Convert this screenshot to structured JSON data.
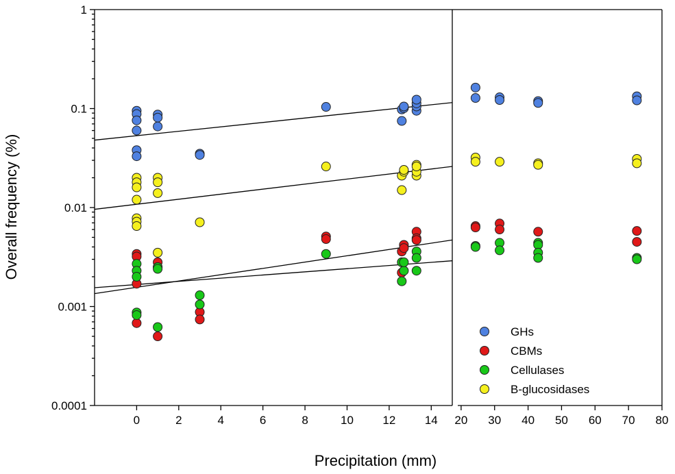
{
  "chart_data": {
    "type": "scatter",
    "title": "",
    "xlabel": "Precipitation (mm)",
    "ylabel": "Overall frequency (%)",
    "yscale": "log",
    "ylim": [
      0.0001,
      1
    ],
    "yticks": [
      {
        "value": 0.0001,
        "label": "0.0001"
      },
      {
        "value": 0.001,
        "label": "0.001"
      },
      {
        "value": 0.01,
        "label": "0.01"
      },
      {
        "value": 0.1,
        "label": "0.1"
      },
      {
        "value": 1,
        "label": "1"
      }
    ],
    "x_segments": [
      {
        "range": [
          -2,
          15
        ],
        "ticks": [
          {
            "value": 0,
            "label": "0"
          },
          {
            "value": 2,
            "label": "2"
          },
          {
            "value": 4,
            "label": "4"
          },
          {
            "value": 6,
            "label": "6"
          },
          {
            "value": 8,
            "label": "8"
          },
          {
            "value": 10,
            "label": "10"
          },
          {
            "value": 12,
            "label": "12"
          },
          {
            "value": 14,
            "label": "14"
          }
        ]
      },
      {
        "range": [
          19,
          80
        ],
        "ticks": [
          {
            "value": 20,
            "label": "20"
          },
          {
            "value": 30,
            "label": "30"
          },
          {
            "value": 40,
            "label": "40"
          },
          {
            "value": 50,
            "label": "50"
          },
          {
            "value": 60,
            "label": "60"
          },
          {
            "value": 70,
            "label": "70"
          },
          {
            "value": 80,
            "label": "80"
          }
        ]
      }
    ],
    "legend_position": "bottom-right",
    "series": [
      {
        "name": "GHs",
        "color": "#4f81e0",
        "points": [
          [
            0,
            0.095
          ],
          [
            0,
            0.088
          ],
          [
            0,
            0.076
          ],
          [
            0,
            0.06
          ],
          [
            0,
            0.038
          ],
          [
            0,
            0.033
          ],
          [
            1,
            0.087
          ],
          [
            1,
            0.081
          ],
          [
            1,
            0.066
          ],
          [
            3,
            0.035
          ],
          [
            3,
            0.034
          ],
          [
            9,
            0.104
          ],
          [
            12.6,
            0.075
          ],
          [
            12.6,
            0.098
          ],
          [
            12.7,
            0.101
          ],
          [
            12.7,
            0.105
          ],
          [
            13.3,
            0.095
          ],
          [
            13.3,
            0.105
          ],
          [
            13.3,
            0.113
          ],
          [
            13.3,
            0.123
          ],
          [
            24.3,
            0.163
          ],
          [
            24.3,
            0.128
          ],
          [
            31.5,
            0.13
          ],
          [
            31.5,
            0.122
          ],
          [
            43,
            0.119
          ],
          [
            43,
            0.114
          ],
          [
            72.5,
            0.133
          ],
          [
            72.5,
            0.121
          ]
        ],
        "trend": [
          [
            -2,
            0.048
          ],
          [
            15,
            0.115
          ]
        ]
      },
      {
        "name": "CBMs",
        "color": "#e01919",
        "points": [
          [
            0,
            0.0034
          ],
          [
            0,
            0.0032
          ],
          [
            0,
            0.0017
          ],
          [
            0,
            0.00068
          ],
          [
            1,
            0.0028
          ],
          [
            1,
            0.0025
          ],
          [
            1,
            0.0005
          ],
          [
            3,
            0.00088
          ],
          [
            3,
            0.00074
          ],
          [
            9,
            0.0051
          ],
          [
            9,
            0.0048
          ],
          [
            12.6,
            0.0036
          ],
          [
            12.7,
            0.0042
          ],
          [
            12.7,
            0.0039
          ],
          [
            12.6,
            0.0022
          ],
          [
            13.3,
            0.0057
          ],
          [
            13.3,
            0.0049
          ],
          [
            13.3,
            0.0047
          ],
          [
            24.3,
            0.0065
          ],
          [
            24.3,
            0.0063
          ],
          [
            31.5,
            0.0069
          ],
          [
            31.5,
            0.006
          ],
          [
            43,
            0.0057
          ],
          [
            72.5,
            0.0058
          ],
          [
            72.5,
            0.0045
          ]
        ],
        "trend": [
          [
            -2,
            0.00135
          ],
          [
            15,
            0.0047
          ]
        ]
      },
      {
        "name": "Cellulases",
        "color": "#19c819",
        "points": [
          [
            0,
            0.0027
          ],
          [
            0,
            0.0023
          ],
          [
            0,
            0.002
          ],
          [
            0,
            0.00087
          ],
          [
            0,
            0.00082
          ],
          [
            1,
            0.00062
          ],
          [
            1,
            0.0025
          ],
          [
            1,
            0.0024
          ],
          [
            3,
            0.0013
          ],
          [
            3,
            0.00105
          ],
          [
            9,
            0.0034
          ],
          [
            12.6,
            0.0028
          ],
          [
            12.6,
            0.0018
          ],
          [
            12.7,
            0.0023
          ],
          [
            12.7,
            0.0028
          ],
          [
            13.3,
            0.0036
          ],
          [
            13.3,
            0.0031
          ],
          [
            13.3,
            0.0023
          ],
          [
            24.3,
            0.0041
          ],
          [
            24.3,
            0.004
          ],
          [
            31.5,
            0.0044
          ],
          [
            31.5,
            0.0037
          ],
          [
            43,
            0.0044
          ],
          [
            43,
            0.0042
          ],
          [
            43,
            0.0035
          ],
          [
            43,
            0.0031
          ],
          [
            72.5,
            0.0031
          ],
          [
            72.5,
            0.003
          ]
        ],
        "trend": [
          [
            -2,
            0.00155
          ],
          [
            15,
            0.0029
          ]
        ]
      },
      {
        "name": "B-glucosidases",
        "color": "#f5f01e",
        "points": [
          [
            0,
            0.02
          ],
          [
            0,
            0.018
          ],
          [
            0,
            0.016
          ],
          [
            0,
            0.012
          ],
          [
            0,
            0.0078
          ],
          [
            0,
            0.0072
          ],
          [
            0,
            0.0065
          ],
          [
            1,
            0.02
          ],
          [
            1,
            0.018
          ],
          [
            1,
            0.014
          ],
          [
            1,
            0.0035
          ],
          [
            3,
            0.0071
          ],
          [
            9,
            0.026
          ],
          [
            12.6,
            0.015
          ],
          [
            12.6,
            0.021
          ],
          [
            12.7,
            0.023
          ],
          [
            12.7,
            0.024
          ],
          [
            13.3,
            0.021
          ],
          [
            13.3,
            0.023
          ],
          [
            13.3,
            0.027
          ],
          [
            13.3,
            0.026
          ],
          [
            24.3,
            0.032
          ],
          [
            24.3,
            0.029
          ],
          [
            31.5,
            0.029
          ],
          [
            43,
            0.028
          ],
          [
            43,
            0.027
          ],
          [
            72.5,
            0.031
          ],
          [
            72.5,
            0.028
          ]
        ],
        "trend": [
          [
            -2,
            0.0096
          ],
          [
            15,
            0.026
          ]
        ]
      }
    ]
  }
}
